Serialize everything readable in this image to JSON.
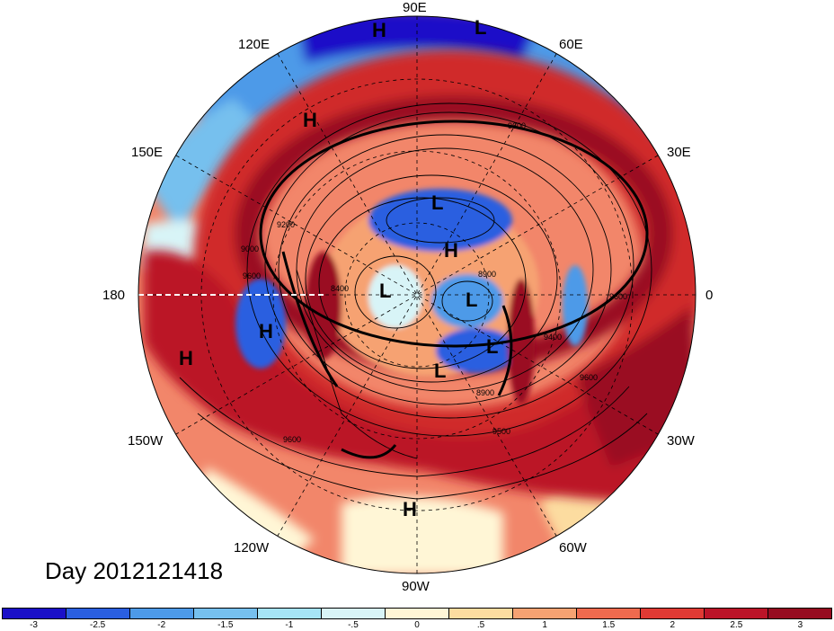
{
  "timestamp": "Day 2012121418",
  "longitude_labels": [
    "90E",
    "60E",
    "30E",
    "0",
    "30W",
    "60W",
    "90W",
    "120W",
    "150W",
    "180",
    "150E",
    "120E"
  ],
  "pressure_centers": [
    "H",
    "L",
    "H",
    "L",
    "H",
    "L",
    "L",
    "L",
    "H",
    "H",
    "L",
    "H"
  ],
  "contour_labels": [
    "9600",
    "9200",
    "9000",
    "9600",
    "8400",
    "9600",
    "8900",
    "9400",
    "9600",
    "9500",
    "9600",
    "8900"
  ],
  "colorbar": {
    "colors": [
      "#1a10c8",
      "#2a5fe0",
      "#4d9ae8",
      "#76c0ee",
      "#a6e4f6",
      "#d8f4f7",
      "#fff6d6",
      "#fcdca0",
      "#f6a272",
      "#ef6a4e",
      "#e03a34",
      "#bb1428",
      "#960c20"
    ],
    "tick_labels": [
      "-3",
      "-2.5",
      "-2",
      "-1.5",
      "-1",
      "-.5",
      "0",
      ".5",
      "1",
      "1.5",
      "2",
      "2.5",
      "3"
    ]
  },
  "map_colors": {
    "ocean_blue": "#3f7fdc",
    "light_blue": "#a6e4f6",
    "cream": "#fff2cc",
    "warm": "#f2866a",
    "red": "#d02c2c",
    "dark_red": "#9a0d22"
  }
}
